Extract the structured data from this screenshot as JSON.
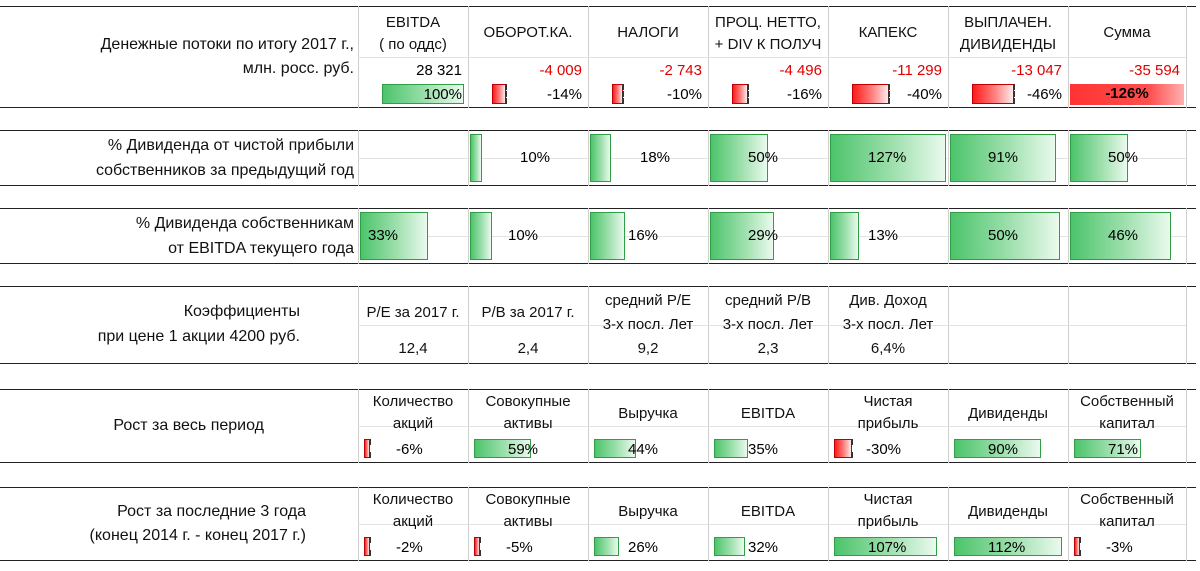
{
  "cashflow": {
    "label_line1": "Денежные потоки по итогу 2017 г.,",
    "label_line2": "млн. росс. руб.",
    "headers": [
      {
        "l1": "EBITDA",
        "l2": "( по оддс)"
      },
      {
        "l1": "ОБОРОТ.КА.",
        "l2": ""
      },
      {
        "l1": "НАЛОГИ",
        "l2": ""
      },
      {
        "l1": "ПРОЦ. НЕТТО,",
        "l2": "+ DIV К ПОЛУЧ"
      },
      {
        "l1": "КАПЕКС",
        "l2": ""
      },
      {
        "l1": "ВЫПЛАЧЕН.",
        "l2": "ДИВИДЕНДЫ"
      },
      {
        "l1": "Сумма",
        "l2": ""
      }
    ],
    "values": [
      "28 321",
      "-4 009",
      "-2 743",
      "-4 496",
      "-11 299",
      "-13 047",
      "-35 594"
    ],
    "percents": [
      "100%",
      "-14%",
      "-10%",
      "-16%",
      "-40%",
      "-46%",
      "-126%"
    ],
    "percent_fracs": [
      1.0,
      -0.14,
      -0.1,
      -0.16,
      -0.4,
      -0.46,
      -1.26
    ],
    "colors": {
      "negative": "#e00000",
      "positive_bar": "#4cc46b",
      "negative_bar": "#ff1a1a"
    }
  },
  "div_profit": {
    "label_line1": "% Дивиденда от чистой прибыли",
    "label_line2": "собственников за предыдущий год",
    "values": [
      "",
      "10%",
      "18%",
      "50%",
      "127%",
      "91%",
      "50%"
    ],
    "fracs": [
      0,
      0.1,
      0.18,
      0.5,
      1.27,
      0.91,
      0.5
    ]
  },
  "div_ebitda": {
    "label_line1": "% Дивиденда собственникам",
    "label_line2": "от EBITDA текущего года",
    "values": [
      "33%",
      "10%",
      "16%",
      "29%",
      "13%",
      "50%",
      "46%"
    ],
    "fracs": [
      0.33,
      0.1,
      0.16,
      0.29,
      0.13,
      0.5,
      0.46
    ]
  },
  "ratios": {
    "label_line1": "Коэффициенты",
    "label_line2": "при цене 1 акции 4200 руб.",
    "items": [
      {
        "l1": "P/E за 2017 г.",
        "l2": "",
        "v": "12,4"
      },
      {
        "l1": "P/B за 2017 г.",
        "l2": "",
        "v": "2,4"
      },
      {
        "l1": "средний P/E",
        "l2": "3-х посл. Лет",
        "v": "9,2"
      },
      {
        "l1": "средний P/B",
        "l2": "3-х посл. Лет",
        "v": "2,3"
      },
      {
        "l1": "Див. Доход",
        "l2": "3-х посл. Лет",
        "v": "6,4%"
      }
    ]
  },
  "growth_all": {
    "label": "Рост за весь период",
    "items": [
      {
        "l1": "Количество",
        "l2": "акций",
        "v": "-6%",
        "f": -0.06
      },
      {
        "l1": "Совокупные",
        "l2": "активы",
        "v": "59%",
        "f": 0.59
      },
      {
        "l1": "",
        "l2": "Выручка",
        "v": "44%",
        "f": 0.44
      },
      {
        "l1": "",
        "l2": "EBITDA",
        "v": "35%",
        "f": 0.35
      },
      {
        "l1": "Чистая",
        "l2": "прибыль",
        "v": "-30%",
        "f": -0.3
      },
      {
        "l1": "",
        "l2": "Дивиденды",
        "v": "90%",
        "f": 0.9
      },
      {
        "l1": "Собственный",
        "l2": "капитал",
        "v": "71%",
        "f": 0.71
      }
    ]
  },
  "growth_3y": {
    "label_line1": "Рост за последние 3 года",
    "label_line2": "(конец 2014 г. - конец 2017 г.)",
    "items": [
      {
        "l1": "Количество",
        "l2": "акций",
        "v": "-2%",
        "f": -0.02
      },
      {
        "l1": "Совокупные",
        "l2": "активы",
        "v": "-5%",
        "f": -0.05
      },
      {
        "l1": "",
        "l2": "Выручка",
        "v": "26%",
        "f": 0.26
      },
      {
        "l1": "",
        "l2": "EBITDA",
        "v": "32%",
        "f": 0.32
      },
      {
        "l1": "Чистая",
        "l2": "прибыль",
        "v": "107%",
        "f": 1.07
      },
      {
        "l1": "",
        "l2": "Дивиденды",
        "v": "112%",
        "f": 1.12
      },
      {
        "l1": "Собственный",
        "l2": "капитал",
        "v": "-3%",
        "f": -0.03
      }
    ]
  }
}
